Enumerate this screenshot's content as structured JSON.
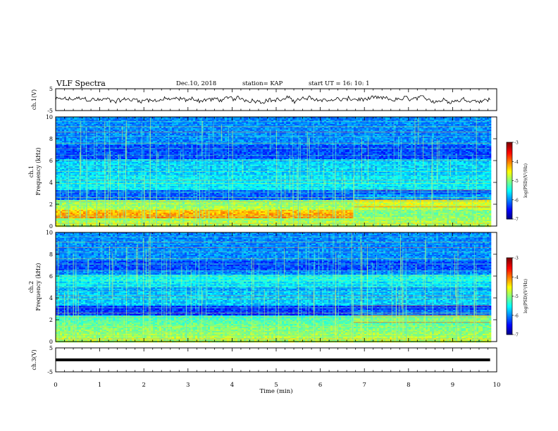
{
  "header": {
    "title": "VLF Spectra",
    "date": "Dec.10, 2018",
    "station": "station= KAP",
    "start": "start  UT =   16: 10: 1"
  },
  "chart_data": [
    {
      "type": "line",
      "name": "ch1-waveform",
      "ylabel": "ch.1(V)",
      "yticks": [
        "5",
        "-5"
      ],
      "ylim": [
        -5,
        5
      ],
      "xlim": [
        0,
        10
      ],
      "x_end": 9.85,
      "level": 0,
      "amplitude": 1.8
    },
    {
      "type": "heatmap",
      "name": "ch1-spectrogram",
      "ylabel": "Frequency (kHz)",
      "sublabel": "ch.1",
      "yticks": [
        "0",
        "2",
        "4",
        "6",
        "8",
        "10"
      ],
      "ylim": [
        0,
        10
      ],
      "xlim": [
        0,
        10
      ],
      "x_end": 9.85,
      "event_time": 6.75,
      "colorbar": {
        "label": "log(PSD)(V²/Hz)",
        "ticks": [
          "-3",
          "-4",
          "-5",
          "-6",
          "-7"
        ],
        "range": [
          -7,
          -3
        ]
      }
    },
    {
      "type": "heatmap",
      "name": "ch2-spectrogram",
      "ylabel": "Frequency (kHz)",
      "sublabel": "ch.2",
      "yticks": [
        "0",
        "2",
        "4",
        "6",
        "8",
        "10"
      ],
      "ylim": [
        0,
        10
      ],
      "xlim": [
        0,
        10
      ],
      "x_end": 9.85,
      "event_time": 6.75,
      "colorbar": {
        "label": "log(PSD)(V²/Hz)",
        "ticks": [
          "-3",
          "-4",
          "-5",
          "-6",
          "-7"
        ],
        "range": [
          -7,
          -3
        ]
      }
    },
    {
      "type": "line",
      "name": "ch3-waveform",
      "ylabel": "ch.3(V)",
      "yticks": [
        "5",
        "-5"
      ],
      "ylim": [
        -5,
        5
      ],
      "xlim": [
        0,
        10
      ],
      "x_end": 9.85,
      "level": 0,
      "amplitude": 0
    }
  ],
  "xaxis": {
    "label": "Time (min)",
    "ticks": [
      "0",
      "1",
      "2",
      "3",
      "4",
      "5",
      "6",
      "7",
      "8",
      "9",
      "10"
    ]
  }
}
